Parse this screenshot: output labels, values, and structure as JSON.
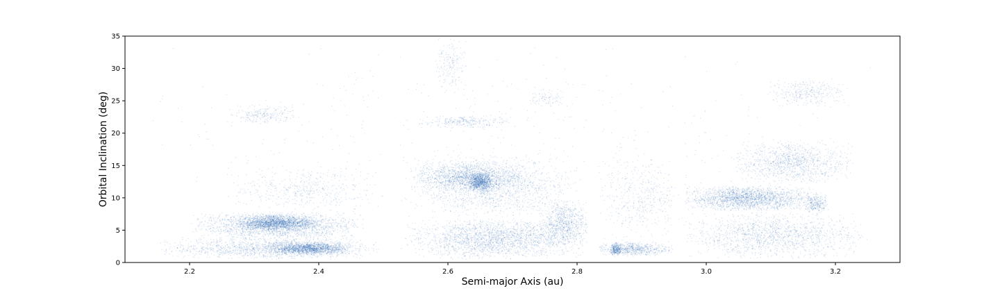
{
  "chart_data": {
    "type": "scatter",
    "title": "",
    "xlabel": "Semi-major Axis (au)",
    "ylabel": "Orbital Inclination (deg)",
    "xlim": [
      2.1,
      3.3
    ],
    "ylim": [
      0,
      35
    ],
    "xticks": [
      2.2,
      2.4,
      2.6,
      2.8,
      3.0,
      3.2
    ],
    "xtick_labels": [
      "2.2",
      "2.4",
      "2.6",
      "2.8",
      "3.0",
      "3.2"
    ],
    "yticks": [
      0,
      5,
      10,
      15,
      20,
      25,
      30,
      35
    ],
    "ytick_labels": [
      "0",
      "5",
      "10",
      "15",
      "20",
      "25",
      "30",
      "35"
    ],
    "grid": false,
    "point_color": "#1f5fae",
    "series": [
      {
        "clusters": [
          {
            "x": [
              2.15,
              2.5
            ],
            "y": [
              0.5,
              4
            ],
            "weight": 1.6
          },
          {
            "x": [
              2.2,
              2.47
            ],
            "y": [
              3.5,
              8
            ],
            "weight": 2.2
          },
          {
            "x": [
              2.27,
              2.4
            ],
            "y": [
              5,
              7.5
            ],
            "weight": 1.6
          },
          {
            "x": [
              2.32,
              2.45
            ],
            "y": [
              1.2,
              3.3
            ],
            "weight": 1.6
          },
          {
            "x": [
              2.25,
              2.5
            ],
            "y": [
              8,
              15
            ],
            "weight": 0.5
          },
          {
            "x": [
              2.26,
              2.37
            ],
            "y": [
              21.5,
              24.5
            ],
            "weight": 0.25
          },
          {
            "x": [
              2.53,
              2.82
            ],
            "y": [
              0.5,
              7
            ],
            "weight": 2.4
          },
          {
            "x": [
              2.53,
              2.8
            ],
            "y": [
              7,
              17
            ],
            "weight": 1.8
          },
          {
            "x": [
              2.55,
              2.72
            ],
            "y": [
              11,
              15.5
            ],
            "weight": 1.4
          },
          {
            "x": [
              2.63,
              2.67
            ],
            "y": [
              11,
              14
            ],
            "weight": 0.8
          },
          {
            "x": [
              2.74,
              2.82
            ],
            "y": [
              2.5,
              10
            ],
            "weight": 0.8
          },
          {
            "x": [
              2.55,
              2.7
            ],
            "y": [
              20.8,
              22.8
            ],
            "weight": 0.3
          },
          {
            "x": [
              2.58,
              2.63
            ],
            "y": [
              26,
              35
            ],
            "weight": 0.2
          },
          {
            "x": [
              2.72,
              2.78
            ],
            "y": [
              24,
              27
            ],
            "weight": 0.1
          },
          {
            "x": [
              2.83,
              2.95
            ],
            "y": [
              1,
              3.3
            ],
            "weight": 0.7
          },
          {
            "x": [
              2.85,
              2.87
            ],
            "y": [
              1,
              3.3
            ],
            "weight": 0.3
          },
          {
            "x": [
              2.83,
              2.97
            ],
            "y": [
              3,
              17
            ],
            "weight": 0.5
          },
          {
            "x": [
              2.96,
              3.17
            ],
            "y": [
              8,
              12
            ],
            "weight": 2.2
          },
          {
            "x": [
              2.96,
              3.25
            ],
            "y": [
              0.5,
              8
            ],
            "weight": 1.6
          },
          {
            "x": [
              3.04,
              3.23
            ],
            "y": [
              12,
              19
            ],
            "weight": 1.2
          },
          {
            "x": [
              3.15,
              3.19
            ],
            "y": [
              7.5,
              11
            ],
            "weight": 0.3
          },
          {
            "x": [
              3.09,
              3.22
            ],
            "y": [
              24,
              28.5
            ],
            "weight": 0.35
          },
          {
            "x": [
              2.1,
              3.3
            ],
            "y": [
              0,
              35
            ],
            "weight": 0.6
          }
        ]
      }
    ]
  }
}
